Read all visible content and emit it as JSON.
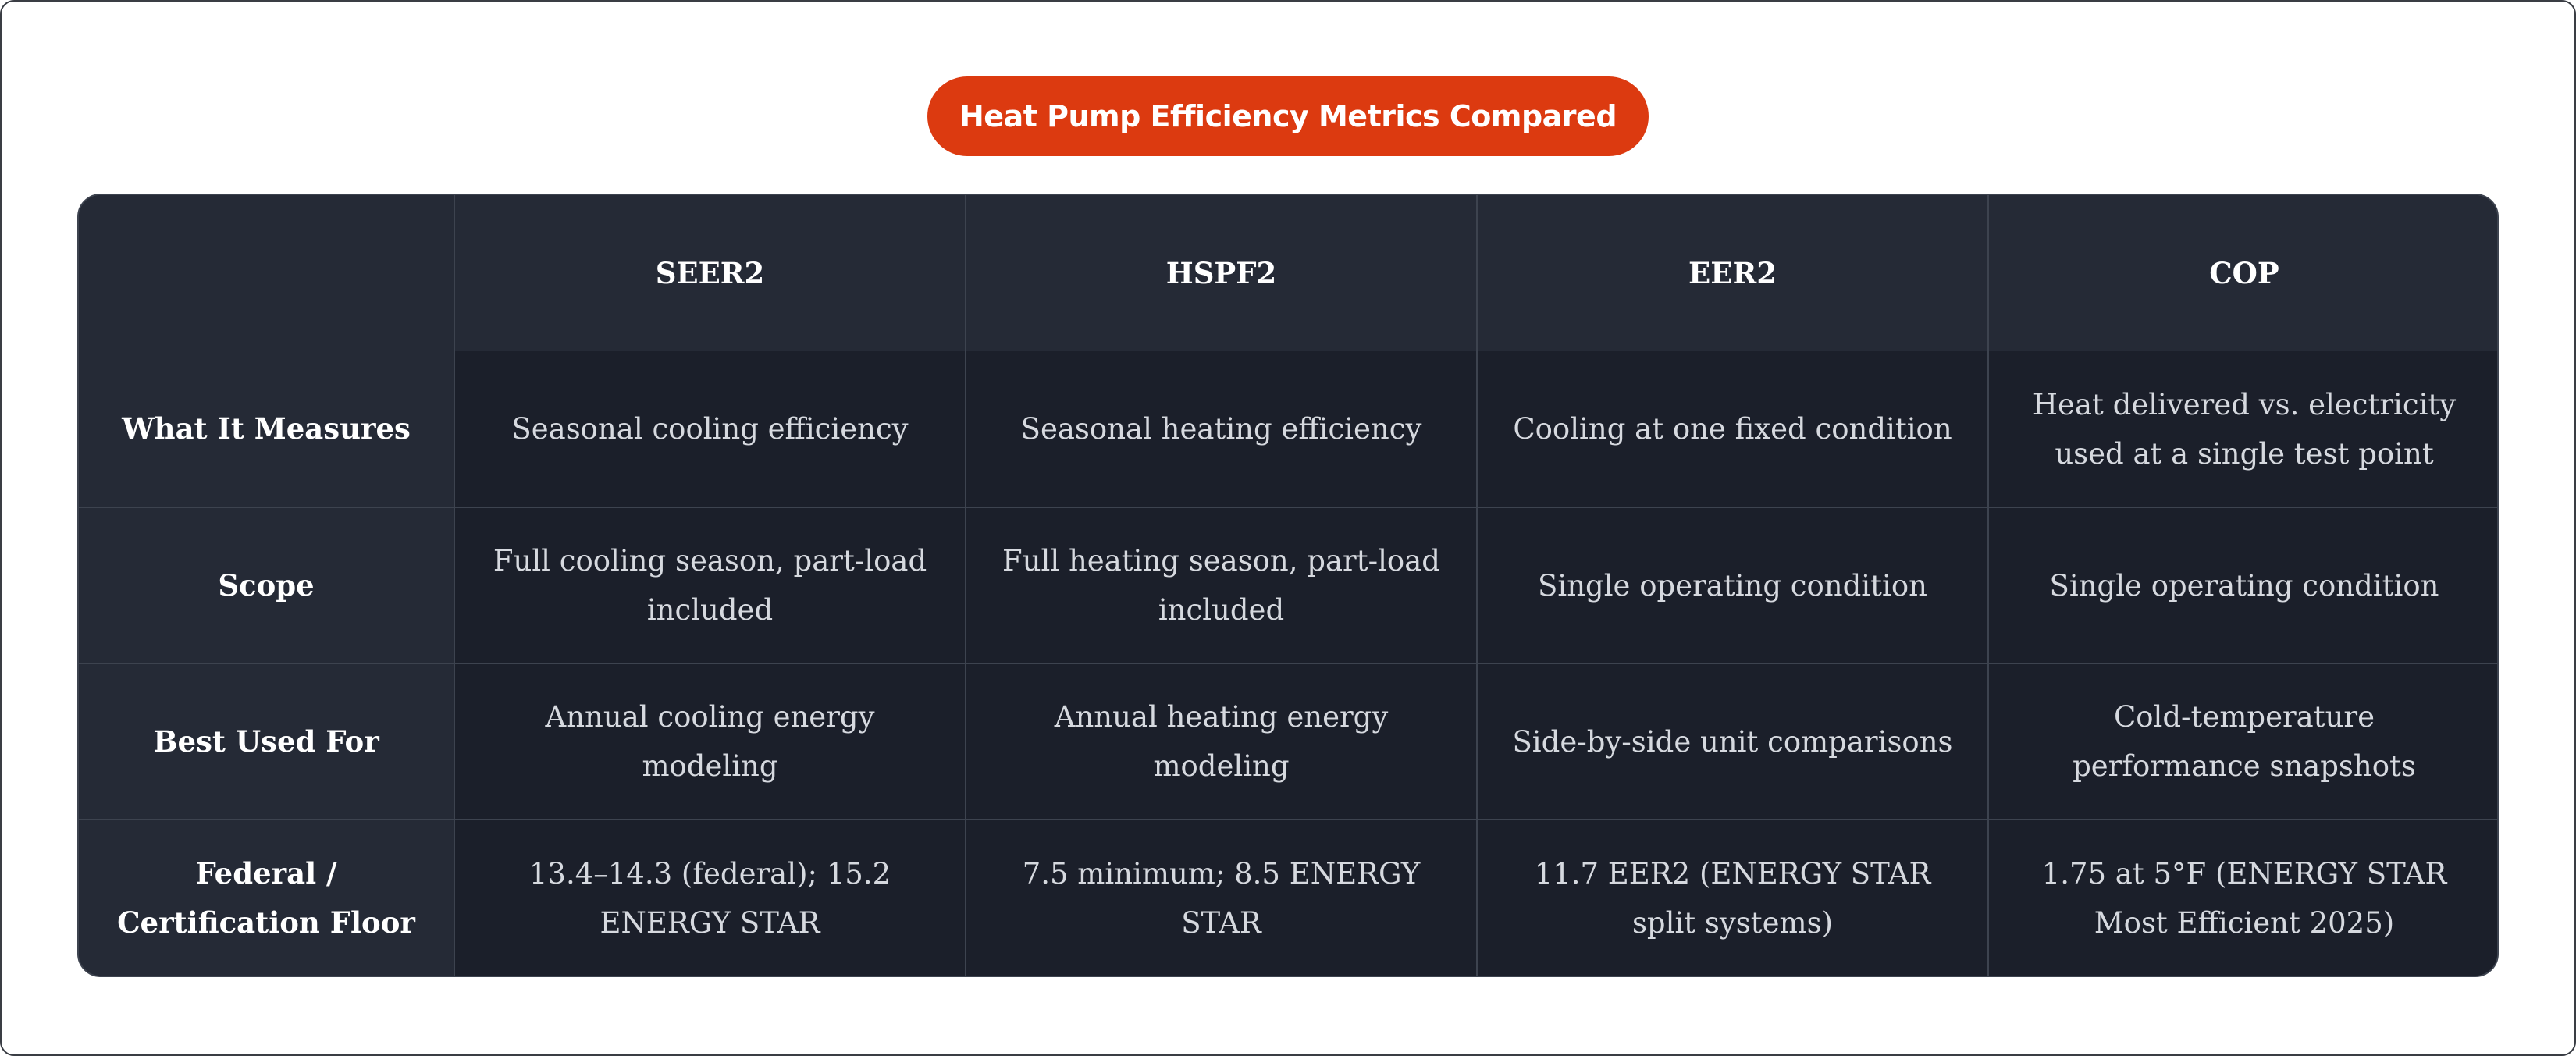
{
  "title": "Heat Pump Efficiency Metrics Compared",
  "colors": {
    "title_pill": "#dc3a10",
    "table_body": "#1b1f2a",
    "table_header": "#252a36",
    "grid_lines": "#3d434f"
  },
  "table": {
    "corner": "",
    "columns": [
      "SEER2",
      "HSPF2",
      "EER2",
      "COP"
    ],
    "rows": [
      {
        "label": "What It Measures",
        "cells": [
          "Seasonal cooling efficiency",
          "Seasonal heating efficiency",
          "Cooling at one fixed condition",
          "Heat delivered vs. electricity used at a single test point"
        ]
      },
      {
        "label": "Scope",
        "cells": [
          "Full cooling season, part-load included",
          "Full heating season, part-load included",
          "Single operating condition",
          "Single operating condition"
        ]
      },
      {
        "label": "Best Used For",
        "cells": [
          "Annual cooling energy modeling",
          "Annual heating energy modeling",
          "Side-by-side unit comparisons",
          "Cold-temperature performance snapshots"
        ]
      },
      {
        "label": "Federal / Certification Floor",
        "cells": [
          "13.4–14.3 (federal); 15.2 ENERGY STAR",
          "7.5 minimum; 8.5 ENERGY STAR",
          "11.7 EER2 (ENERGY STAR split systems)",
          "1.75 at 5°F (ENERGY STAR Most Efficient 2025)"
        ]
      }
    ]
  }
}
